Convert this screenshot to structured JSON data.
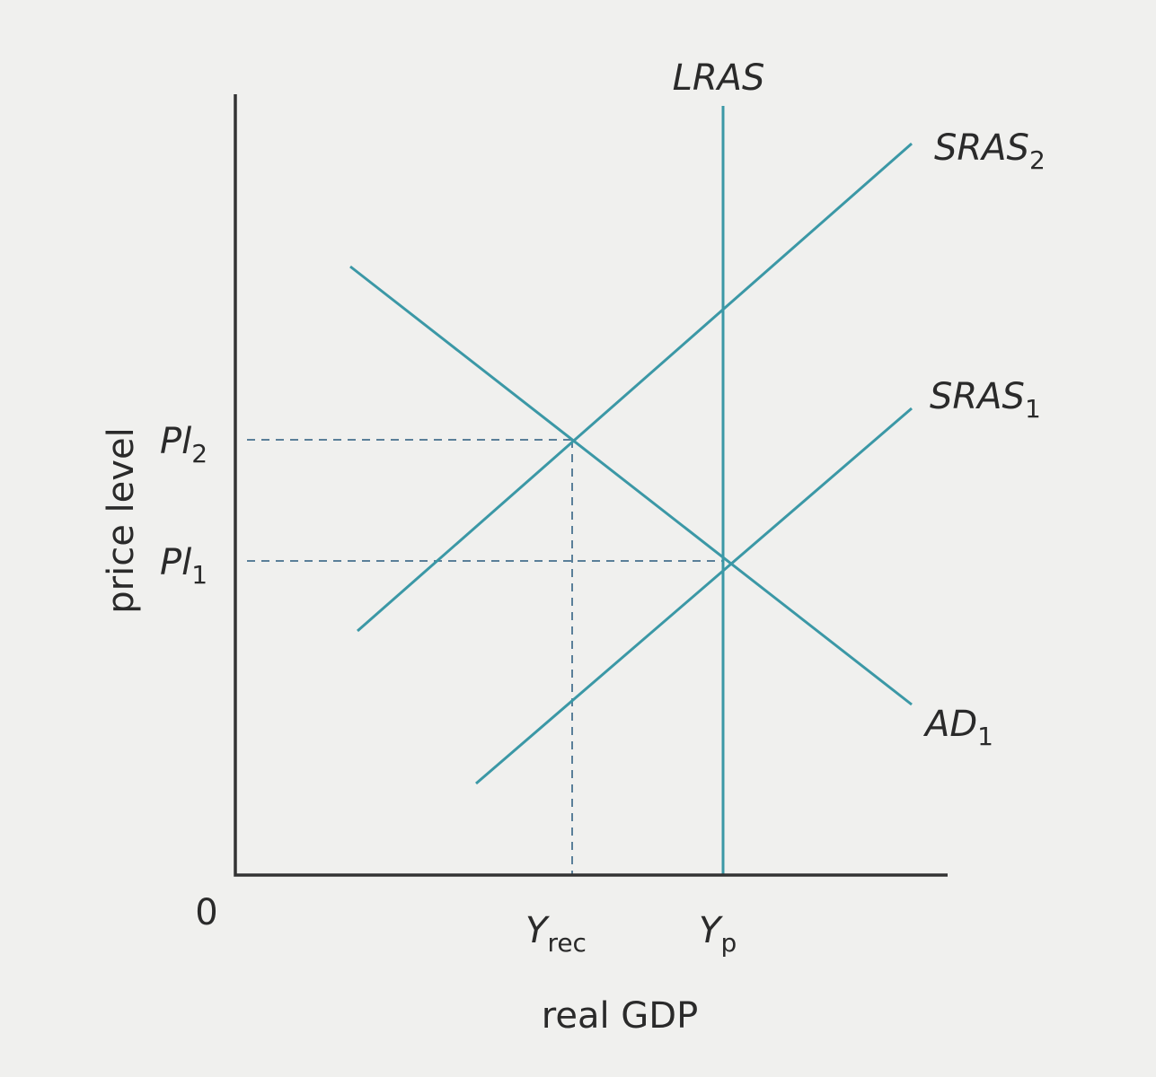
{
  "axes": {
    "x_label": "real GDP",
    "y_label": "price level",
    "origin": "0"
  },
  "curves": [
    {
      "label": "LRAS"
    },
    {
      "label": "SRAS",
      "subscript": "2"
    },
    {
      "label": "SRAS",
      "subscript": "1"
    },
    {
      "label": "AD",
      "subscript": "1"
    }
  ],
  "price_levels": [
    {
      "label": "Pl",
      "subscript": "2"
    },
    {
      "label": "Pl",
      "subscript": "1"
    }
  ],
  "outputs": [
    {
      "label": "Y",
      "subscript": "rec"
    },
    {
      "label": "Y",
      "subscript": "p"
    }
  ]
}
